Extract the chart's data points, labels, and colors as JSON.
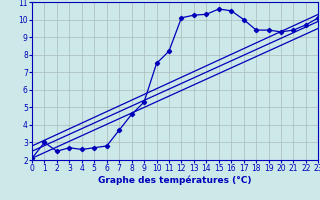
{
  "xlabel": "Graphe des températures (°C)",
  "xlim": [
    0,
    23
  ],
  "ylim": [
    2,
    11
  ],
  "yticks": [
    2,
    3,
    4,
    5,
    6,
    7,
    8,
    9,
    10,
    11
  ],
  "xticks": [
    0,
    1,
    2,
    3,
    4,
    5,
    6,
    7,
    8,
    9,
    10,
    11,
    12,
    13,
    14,
    15,
    16,
    17,
    18,
    19,
    20,
    21,
    22,
    23
  ],
  "background_color": "#cce8e8",
  "line_color": "#0000bb",
  "grid_color": "#aabbbb",
  "main_curve_x": [
    0,
    1,
    2,
    3,
    4,
    5,
    6,
    7,
    8,
    9,
    10,
    11,
    12,
    13,
    14,
    15,
    16,
    17,
    18,
    19,
    20,
    21,
    22,
    23
  ],
  "main_curve_y": [
    2.1,
    3.0,
    2.5,
    2.7,
    2.6,
    2.7,
    2.8,
    3.7,
    4.6,
    5.3,
    7.5,
    8.2,
    10.1,
    10.25,
    10.3,
    10.6,
    10.5,
    10.0,
    9.4,
    9.4,
    9.3,
    9.4,
    9.7,
    10.1
  ],
  "diag_line1_x": [
    0,
    23
  ],
  "diag_line1_y": [
    2.1,
    9.5
  ],
  "diag_line2_x": [
    0,
    23
  ],
  "diag_line2_y": [
    2.5,
    9.9
  ],
  "diag_line3_x": [
    0,
    23
  ],
  "diag_line3_y": [
    2.8,
    10.3
  ],
  "marker": "D",
  "markersize": 2.2,
  "linewidth": 0.9,
  "tick_fontsize": 5.5,
  "xlabel_fontsize": 6.5
}
